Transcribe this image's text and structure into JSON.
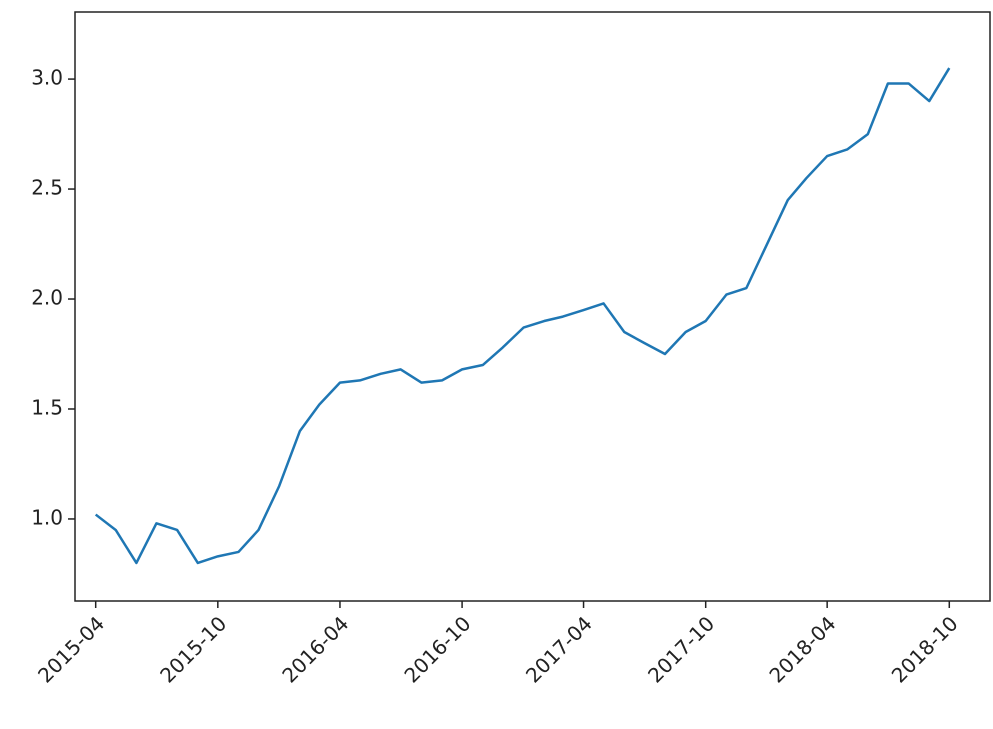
{
  "chart_data": {
    "type": "line",
    "x": [
      "2015-04",
      "2015-05",
      "2015-06",
      "2015-07",
      "2015-08",
      "2015-09",
      "2015-10",
      "2015-11",
      "2015-12",
      "2016-01",
      "2016-02",
      "2016-03",
      "2016-04",
      "2016-05",
      "2016-06",
      "2016-07",
      "2016-08",
      "2016-09",
      "2016-10",
      "2016-11",
      "2016-12",
      "2017-01",
      "2017-02",
      "2017-03",
      "2017-04",
      "2017-05",
      "2017-06",
      "2017-07",
      "2017-08",
      "2017-09",
      "2017-10",
      "2017-11",
      "2017-12",
      "2018-01",
      "2018-02",
      "2018-03",
      "2018-04",
      "2018-05",
      "2018-06",
      "2018-07",
      "2018-08",
      "2018-09",
      "2018-10"
    ],
    "series": [
      {
        "color": "#1f77b4",
        "values": [
          1.02,
          0.95,
          0.8,
          0.98,
          0.95,
          0.8,
          0.83,
          0.85,
          0.95,
          1.15,
          1.4,
          1.52,
          1.62,
          1.63,
          1.66,
          1.68,
          1.62,
          1.63,
          1.68,
          1.7,
          1.78,
          1.87,
          1.9,
          1.92,
          1.95,
          1.98,
          1.85,
          1.8,
          1.75,
          1.85,
          1.9,
          2.02,
          2.05,
          2.25,
          2.45,
          2.55,
          2.65,
          2.68,
          2.75,
          2.98,
          2.98,
          2.9,
          3.05
        ]
      }
    ],
    "xlim": [
      "2015-03",
      "2018-12"
    ],
    "xticks": [
      "2015-04",
      "2015-10",
      "2016-04",
      "2016-10",
      "2017-04",
      "2017-10",
      "2018-04",
      "2018-10"
    ],
    "ylim": [
      0.627,
      3.305
    ],
    "yticks": [
      {
        "value": 1.0,
        "label": "1.0"
      },
      {
        "value": 1.5,
        "label": "1.5"
      },
      {
        "value": 2.0,
        "label": "2.0"
      },
      {
        "value": 2.5,
        "label": "2.5"
      },
      {
        "value": 3.0,
        "label": "3.0"
      }
    ]
  }
}
